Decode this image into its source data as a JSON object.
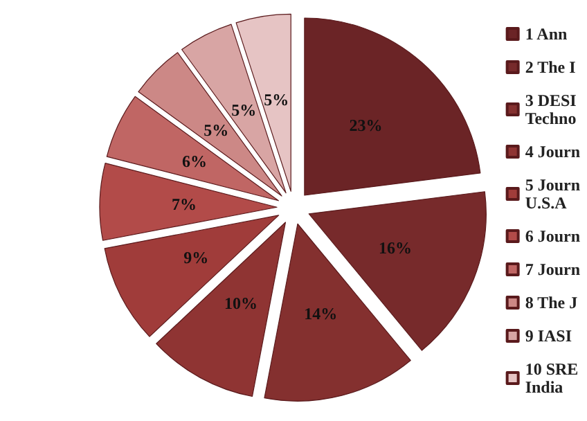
{
  "chart_data": {
    "type": "pie",
    "categories": [
      "1 Ann",
      "2 The I",
      "3 DESI\nTechno",
      "4 Journ",
      "5 Journ\nU.S.A",
      "6 Journ",
      "7 Journ",
      "8 The J",
      "9 IASI",
      "10 SRE\nIndia"
    ],
    "values": [
      23,
      16,
      14,
      10,
      9,
      7,
      6,
      5,
      5,
      5
    ],
    "colors": [
      "#6b2426",
      "#772a2b",
      "#84302f",
      "#8f3433",
      "#a03c3a",
      "#b24b49",
      "#c06664",
      "#cc8886",
      "#d8a5a4",
      "#e6c4c4"
    ],
    "value_labels": [
      "23%",
      "16%",
      "14%",
      "10%",
      "9%",
      "7%",
      "6%",
      "5%",
      "5%",
      "5%"
    ],
    "legend": "right"
  }
}
